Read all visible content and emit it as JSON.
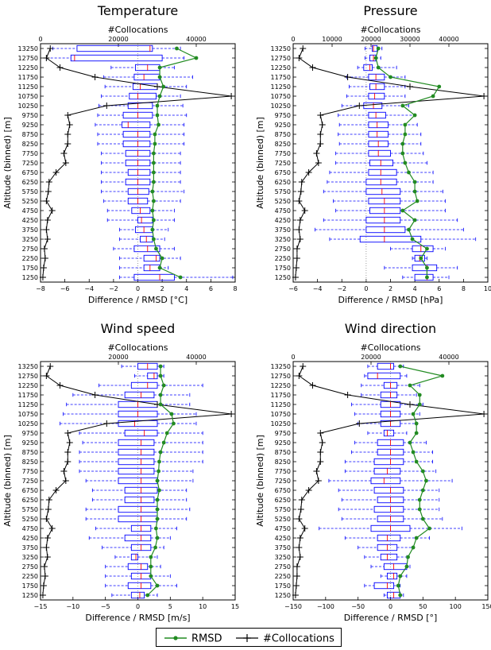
{
  "chart_data": [
    {
      "type": "boxplot",
      "title": "Temperature",
      "xlabel": "Difference / RMSD [°C]",
      "ylabel": "Altitude (binned) [m]",
      "x2label": "#Collocations",
      "xlim": [
        -8,
        8
      ],
      "xticks": [
        "−8",
        "−6",
        "−4",
        "−2",
        "0",
        "2",
        "4",
        "6",
        "8"
      ],
      "x2lim": [
        0,
        50000
      ],
      "x2ticks": [
        "0",
        "20000",
        "40000"
      ],
      "y": [
        1250,
        1750,
        2250,
        2750,
        3250,
        3750,
        4250,
        4750,
        5250,
        5750,
        6250,
        6750,
        7250,
        7750,
        8250,
        8750,
        9250,
        9750,
        10250,
        10750,
        11250,
        11750,
        12250,
        12750,
        13250
      ],
      "box_low": [
        -0.3,
        0.5,
        0.5,
        -0.3,
        0.2,
        -0.2,
        0,
        -0.5,
        -0.8,
        -0.8,
        -1,
        -0.8,
        -1,
        -1,
        -1.2,
        -1.2,
        -1.3,
        -1.2,
        -0.8,
        -0.7,
        -0.4,
        -0.3,
        -0.2,
        -5.5,
        -5
      ],
      "box_high": [
        3,
        1.8,
        1.8,
        1.8,
        1.2,
        1.2,
        1.2,
        1,
        0.8,
        0.9,
        1,
        1,
        1,
        1,
        1,
        1,
        1,
        1.2,
        1.2,
        1.5,
        1.6,
        1.8,
        1.8,
        2,
        1.2
      ],
      "median": [
        1.8,
        1,
        1.5,
        0.8,
        0.7,
        0.5,
        0.3,
        0.2,
        0,
        0,
        0,
        0,
        0,
        0,
        0,
        0,
        -0.8,
        0,
        0,
        0,
        0.2,
        0.5,
        0.8,
        -5.2,
        1
      ],
      "whisker_low": [
        -1.5,
        -1.5,
        -1.5,
        -2,
        -1.5,
        -1.5,
        -2.5,
        -2.5,
        -2.8,
        -3,
        -3,
        -3,
        -3,
        -3,
        -3.3,
        -3.3,
        -3.5,
        -3.3,
        -3.2,
        -3,
        -2.7,
        -2.8,
        -2.2,
        -7.5,
        -7
      ],
      "whisker_high": [
        7.8,
        2.5,
        3.5,
        3,
        2.2,
        2.5,
        3,
        3,
        3.5,
        3.8,
        3.5,
        3.5,
        3.5,
        3.5,
        3.8,
        3.8,
        3.8,
        4,
        3.7,
        3.5,
        4,
        4.5,
        3,
        3.8,
        3.5
      ],
      "series": [
        {
          "name": "RMSD",
          "values": [
            3.5,
            1.8,
            2,
            1.5,
            1.3,
            1.2,
            1.3,
            1.2,
            1.3,
            1.2,
            1.3,
            1.3,
            1.3,
            1.3,
            1.4,
            1.4,
            1.7,
            1.6,
            1.6,
            1.8,
            2.1,
            1.8,
            1.8,
            4.8,
            3.2
          ]
        },
        {
          "name": "#Collocations",
          "values": [
            600,
            800,
            1200,
            1000,
            1800,
            1500,
            1800,
            3000,
            1500,
            2000,
            2200,
            4000,
            6500,
            6000,
            7000,
            7000,
            7500,
            7000,
            17000,
            49000,
            30000,
            14000,
            5000,
            1500,
            2500
          ]
        }
      ]
    },
    {
      "type": "boxplot",
      "title": "Pressure",
      "xlabel": "Difference / RMSD [hPa]",
      "ylabel": "Altitude (binned) [m]",
      "x2label": "#Collocations",
      "xlim": [
        -6,
        10
      ],
      "xticks": [
        "−6",
        "−4",
        "−2",
        "0",
        "2",
        "4",
        "6",
        "8",
        "10"
      ],
      "x2lim": [
        0,
        50000
      ],
      "x2ticks": [
        "0",
        "10000",
        "20000",
        "30000",
        "40000"
      ],
      "y": [
        1250,
        1750,
        2250,
        2750,
        3250,
        3750,
        4250,
        4750,
        5250,
        5750,
        6250,
        6750,
        7250,
        7750,
        8250,
        8750,
        9250,
        9750,
        10250,
        10750,
        11250,
        11750,
        12250,
        12750,
        13250
      ],
      "box_low": [
        4,
        3.8,
        4,
        3.8,
        -0.5,
        0,
        0,
        0.3,
        0.2,
        0,
        0,
        0.2,
        0.3,
        0.2,
        0.2,
        0.2,
        0.2,
        0.2,
        -0.2,
        0.2,
        0.3,
        0.2,
        -0.2,
        0.3,
        0.5
      ],
      "box_high": [
        5.5,
        5.8,
        4.8,
        5.5,
        4.5,
        3.2,
        2.8,
        2.8,
        2.8,
        2.8,
        2.5,
        2.5,
        2.2,
        2,
        1.8,
        1.8,
        1.8,
        1.6,
        1.3,
        1.5,
        1.5,
        1.5,
        0.5,
        0.8,
        0.9
      ],
      "median": [
        5,
        5,
        4.4,
        4.5,
        1.5,
        1.5,
        1.5,
        1.5,
        1.5,
        1.3,
        1.2,
        1.2,
        1.2,
        1,
        1,
        0.9,
        0.9,
        0.8,
        0.6,
        0.7,
        0.8,
        0.8,
        0.3,
        0.6,
        0.6
      ],
      "whisker_low": [
        3,
        1.5,
        3.8,
        2,
        -3,
        -4.2,
        -3.5,
        -2.5,
        -2.7,
        -3.5,
        -3.2,
        -3,
        -2.5,
        -2.5,
        -2.2,
        -2.3,
        -2.2,
        -2.3,
        -2,
        -1.6,
        -1.4,
        -1.6,
        -0.7,
        -0.1,
        -0.1
      ],
      "whisker_high": [
        6.8,
        7.5,
        5,
        6.5,
        9,
        8,
        7.5,
        6.5,
        6.5,
        6.3,
        5.5,
        5.5,
        5,
        4.7,
        4.5,
        4.5,
        4.2,
        4,
        3.5,
        3.2,
        3.2,
        3.2,
        2.5,
        1.2,
        1.3
      ],
      "series": [
        {
          "name": "RMSD",
          "values": [
            5,
            5,
            4.5,
            5,
            3.8,
            3.5,
            4,
            3,
            4.2,
            4,
            4,
            3.5,
            3.2,
            3,
            3,
            3.2,
            3.2,
            4,
            3,
            5.5,
            6,
            2,
            1,
            0.8,
            1
          ]
        },
        {
          "name": "#Collocations",
          "values": [
            600,
            800,
            1000,
            1000,
            1800,
            1500,
            1800,
            3000,
            1500,
            2000,
            2200,
            4000,
            6500,
            6000,
            7000,
            7000,
            7500,
            7000,
            17000,
            49000,
            30000,
            14000,
            5000,
            1500,
            2500
          ]
        }
      ]
    },
    {
      "type": "boxplot",
      "title": "Wind speed",
      "xlabel": "Difference / RMSD [m/s]",
      "ylabel": "Altitude (binned) [m]",
      "x2label": "#Collocations",
      "xlim": [
        -15,
        15
      ],
      "xticks": [
        "−15",
        "−10",
        "−5",
        "0",
        "5",
        "10",
        "15"
      ],
      "x2lim": [
        0,
        50000
      ],
      "x2ticks": [
        "20000",
        "40000"
      ],
      "y": [
        1250,
        1750,
        2250,
        2750,
        3250,
        3750,
        4250,
        4750,
        5250,
        5750,
        6250,
        6750,
        7250,
        7750,
        8250,
        8750,
        9250,
        9750,
        10250,
        10750,
        11250,
        11750,
        12250,
        12750,
        13250
      ],
      "box_low": [
        -1,
        -1.5,
        -1,
        -1.5,
        -1,
        -1,
        -2,
        -1,
        -3,
        -3,
        -2,
        -2,
        -3,
        -3,
        -3,
        -3,
        -3,
        -2,
        -3,
        -3,
        -3,
        -2,
        -1,
        1.5,
        0
      ],
      "box_high": [
        1,
        2,
        2,
        1.5,
        0,
        2,
        2,
        2,
        3,
        3,
        2.5,
        3,
        3,
        2.5,
        2.5,
        2.5,
        2.5,
        3,
        3,
        3,
        3,
        2.5,
        3,
        3,
        3
      ],
      "median": [
        0.3,
        0.5,
        0.5,
        0.5,
        -0.3,
        0.5,
        0.5,
        0.5,
        0.5,
        0.5,
        0.5,
        0.5,
        0.5,
        0.5,
        0.5,
        0.5,
        0.5,
        1,
        -0.5,
        0,
        0,
        0.5,
        1.5,
        2.5,
        1.5
      ],
      "whisker_low": [
        -4,
        -5,
        -5,
        -5,
        -3.5,
        -5.5,
        -7.5,
        -6.5,
        -8,
        -8,
        -7,
        -7,
        -8,
        -9,
        -9,
        -9,
        -8.5,
        -9,
        -12,
        -11.5,
        -11,
        -10,
        -6,
        -0.5,
        -2.5
      ],
      "whisker_high": [
        3,
        6,
        5,
        3.5,
        3,
        4,
        5,
        6,
        7.5,
        8,
        7.5,
        7.5,
        8.5,
        8.5,
        10,
        10,
        10,
        10,
        9,
        9,
        8,
        8,
        10,
        4,
        4
      ],
      "series": [
        {
          "name": "RMSD",
          "values": [
            1.5,
            3,
            2,
            2,
            2,
            2.7,
            3,
            2.8,
            3,
            3,
            3,
            3.3,
            3,
            3.2,
            3.3,
            3.5,
            4,
            4.5,
            5.5,
            5.2,
            3.5,
            3.5,
            4,
            3.5,
            3.5
          ]
        },
        {
          "name": "#Collocations",
          "values": [
            600,
            800,
            1200,
            1000,
            1800,
            1500,
            1800,
            3000,
            1500,
            2000,
            2200,
            4000,
            6500,
            6000,
            7000,
            7000,
            7500,
            7000,
            17000,
            49000,
            30000,
            14000,
            5000,
            1500,
            2500
          ]
        }
      ]
    },
    {
      "type": "boxplot",
      "title": "Wind direction",
      "xlabel": "Difference / RMSD [°]",
      "ylabel": "Altitude (binned) [m]",
      "x2label": "#Collocations",
      "xlim": [
        -150,
        150
      ],
      "xticks": [
        "−150",
        "−100",
        "−50",
        "0",
        "50",
        "100",
        "150"
      ],
      "x2lim": [
        0,
        50000
      ],
      "x2ticks": [
        "0",
        "20000",
        "40000"
      ],
      "y": [
        1250,
        1750,
        2250,
        2750,
        3250,
        3750,
        4250,
        4750,
        5250,
        5750,
        6250,
        6750,
        7250,
        7750,
        8250,
        8750,
        9250,
        9750,
        10250,
        10750,
        11250,
        11750,
        12250,
        12750,
        13250
      ],
      "box_low": [
        -5,
        -25,
        -5,
        -10,
        -15,
        -20,
        -20,
        -30,
        -20,
        -25,
        -20,
        -25,
        -30,
        -25,
        -25,
        -20,
        -20,
        -10,
        -15,
        -15,
        -15,
        -15,
        -10,
        -35,
        -20
      ],
      "box_high": [
        15,
        5,
        10,
        25,
        10,
        10,
        15,
        30,
        20,
        20,
        20,
        20,
        15,
        15,
        20,
        20,
        20,
        5,
        15,
        15,
        15,
        10,
        10,
        15,
        5
      ],
      "median": [
        5,
        -5,
        5,
        5,
        -5,
        -5,
        -5,
        0,
        0,
        0,
        0,
        0,
        -10,
        -5,
        0,
        0,
        0,
        -5,
        0,
        0,
        0,
        0,
        0,
        -20,
        0
      ],
      "whisker_low": [
        -10,
        -40,
        -15,
        -30,
        -40,
        -50,
        -70,
        -110,
        -75,
        -80,
        -75,
        -80,
        -95,
        -70,
        -70,
        -60,
        -55,
        -35,
        -50,
        -55,
        -60,
        -45,
        -45,
        -40,
        -35
      ],
      "whisker_high": [
        20,
        15,
        25,
        30,
        25,
        35,
        60,
        110,
        80,
        75,
        75,
        75,
        95,
        70,
        65,
        65,
        55,
        25,
        40,
        45,
        50,
        40,
        45,
        25,
        20
      ],
      "series": [
        {
          "name": "RMSD",
          "values": [
            15,
            12,
            15,
            25,
            27,
            35,
            40,
            60,
            50,
            45,
            45,
            50,
            55,
            50,
            40,
            35,
            30,
            40,
            40,
            35,
            45,
            45,
            30,
            80,
            15
          ]
        },
        {
          "name": "#Collocations",
          "values": [
            600,
            800,
            1000,
            1000,
            1800,
            1500,
            1800,
            3000,
            1500,
            2000,
            2200,
            4000,
            6500,
            6000,
            7000,
            7000,
            7500,
            7000,
            17000,
            49000,
            30000,
            14000,
            5000,
            1500,
            2500
          ]
        }
      ]
    }
  ],
  "legend": [
    {
      "label": "RMSD",
      "color": "#228b22"
    },
    {
      "label": "#Collocations",
      "color": "#000000"
    }
  ],
  "colors": {
    "box": "#0000ff",
    "median": "#ff0000",
    "rmsd": "#228b22",
    "count": "#000000"
  }
}
